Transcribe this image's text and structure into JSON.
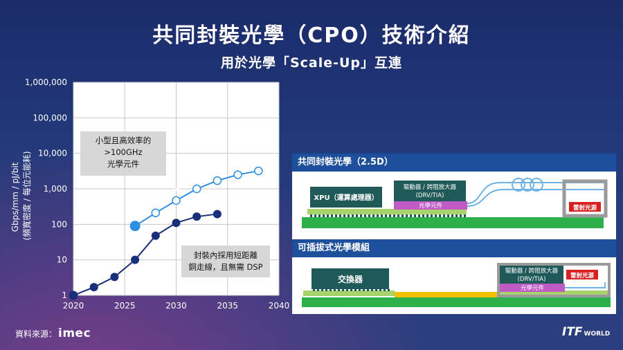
{
  "header": {
    "title": "共同封裝光學（CPO）技術介紹",
    "subtitle": "用於光學「Scale-Up」互連"
  },
  "chart_data": {
    "type": "line",
    "ylabel_line1": "Gbps/mm / pJ/bit",
    "ylabel_line2": "(頻寬密度 / 每位元能耗)",
    "yscale": "log",
    "xlim": [
      2020,
      2040
    ],
    "ylim": [
      1,
      1000000
    ],
    "x_ticks": [
      "2020",
      "2025",
      "2030",
      "2035",
      "2040"
    ],
    "y_ticks": [
      "1",
      "10",
      "100",
      "1,000",
      "10,000",
      "100,000",
      "1,000,000"
    ],
    "grid": true,
    "series": [
      {
        "color": "#1a2f7a",
        "points": [
          [
            2020,
            1
          ],
          [
            2022,
            1.7
          ],
          [
            2024,
            3.3
          ],
          [
            2026,
            10
          ],
          [
            2028,
            48
          ],
          [
            2030,
            110
          ],
          [
            2032,
            165
          ],
          [
            2034,
            195
          ]
        ]
      },
      {
        "color": "#2e8ee0",
        "points": [
          [
            2026,
            90
          ],
          [
            2028,
            210
          ],
          [
            2030,
            470
          ],
          [
            2032,
            1000
          ],
          [
            2034,
            1700
          ],
          [
            2036,
            2500
          ],
          [
            2038,
            3200
          ]
        ]
      }
    ],
    "annotations": {
      "top": [
        "小型且高效率的",
        ">100GHz",
        "光學元件"
      ],
      "bottom": [
        "封裝內採用短距離",
        "銅走線，且無需 DSP"
      ]
    }
  },
  "panel_25d": {
    "header": "共同封裝光學（2.5D）",
    "xpu_label": "XPU（運算處理器）",
    "driver_line1": "驅動器 / 跨阻放大器",
    "driver_line2": "(DRV/TIA)",
    "optics_label": "光學元件",
    "laser_label": "雷射光源"
  },
  "panel_pluggable": {
    "header": "可插拔式光學模組",
    "switch_label": "交換器",
    "driver_line1": "驅動器 / 跨阻放大器",
    "driver_line2": "(DRV/TIA)",
    "optics_label": "光學元件",
    "laser_label": "雷射光源"
  },
  "footer": {
    "source_label": "資料來源：",
    "source_logo": "imec",
    "brand_main": "ITF",
    "brand_sub": "WORLD"
  }
}
